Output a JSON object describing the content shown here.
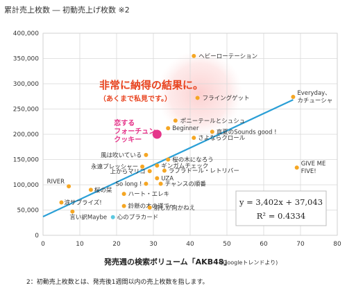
{
  "title": "累計売上枚数 ― 初動売上げ枚数 ※2",
  "callout": {
    "main": "非常に納得の結果に。",
    "sub": "（あくまで私見です。）"
  },
  "equation": {
    "line1": "y = 3,402x + 37,043",
    "line2": "R² = 0.4334"
  },
  "footnote": "2：初動売上枚数とは、発売後1週間以内の売上枚数を指します。",
  "colors": {
    "point": "#f5a623",
    "highlight": "#e5358a",
    "special": "#5cc8e0",
    "trend": "#2a9fd6",
    "glow": "#f9a8a8"
  },
  "chart_data": {
    "type": "scatter",
    "xlabel_main": "発売週の検索ボリューム「AKB48」",
    "xlabel_sub": "(Googleトレンドより)",
    "xlim": [
      0,
      80
    ],
    "ylim": [
      0,
      400000
    ],
    "xticks": [
      "0",
      "10",
      "20",
      "30",
      "40",
      "50",
      "60",
      "70",
      "80"
    ],
    "yticks": [
      "0",
      "50,000",
      "100,000",
      "150,000",
      "200,000",
      "250,000",
      "300,000",
      "350,000",
      "400,000"
    ],
    "trendline": {
      "slope": 3402,
      "intercept": 37043,
      "x": [
        0,
        68
      ]
    },
    "points": [
      {
        "label": "ヘビーローテーション",
        "x": 41,
        "y": 355000
      },
      {
        "label": "Everyday、カチューシャ",
        "x": 68,
        "y": 274000
      },
      {
        "label": "フライングゲット",
        "x": 42,
        "y": 272000
      },
      {
        "label": "ポニーテールとシュシュ",
        "x": 36,
        "y": 227000
      },
      {
        "label": "Beginner",
        "x": 34,
        "y": 212000
      },
      {
        "label": "真夏のSounds good !",
        "x": 46,
        "y": 205000
      },
      {
        "label": "さよならクロール",
        "x": 41,
        "y": 193000
      },
      {
        "label": "風は吹いている",
        "x": 28,
        "y": 159000
      },
      {
        "label": "桜の木になろう",
        "x": 34,
        "y": 150000
      },
      {
        "label": "永遠プレッシャー",
        "x": 27,
        "y": 136000
      },
      {
        "label": "ギンガムチェック",
        "x": 31,
        "y": 138000
      },
      {
        "label": "上からマリコ",
        "x": 29,
        "y": 127000
      },
      {
        "label": "ラブラドール・レトリバー",
        "x": 33,
        "y": 128000
      },
      {
        "label": "UZA",
        "x": 31,
        "y": 113000
      },
      {
        "label": "So long !",
        "x": 28,
        "y": 102000
      },
      {
        "label": "チャンスの順番",
        "x": 32,
        "y": 102000
      },
      {
        "label": "GIVE ME FIVE!",
        "x": 69,
        "y": 134000
      },
      {
        "label": "RIVER",
        "x": 7,
        "y": 97000
      },
      {
        "label": "桜の栞",
        "x": 13,
        "y": 90000
      },
      {
        "label": "ハート・エレキ",
        "x": 22,
        "y": 82000
      },
      {
        "label": "涙サプライズ!",
        "x": 5,
        "y": 65000
      },
      {
        "label": "鈴懸の木の道で～",
        "x": 22,
        "y": 58000
      },
      {
        "label": "前しか向かねえ",
        "x": 29,
        "y": 55000
      },
      {
        "label": "言い訳Maybe",
        "x": 8,
        "y": 47000
      },
      {
        "label": "心のプラカード",
        "x": 19,
        "y": 36000,
        "kind": "special"
      },
      {
        "label": "恋するフォーチュンクッキー",
        "x": 31,
        "y": 200000,
        "kind": "highlight"
      }
    ],
    "highlight_label_lines": [
      "恋する",
      "フォーチュン",
      "クッキー"
    ]
  }
}
